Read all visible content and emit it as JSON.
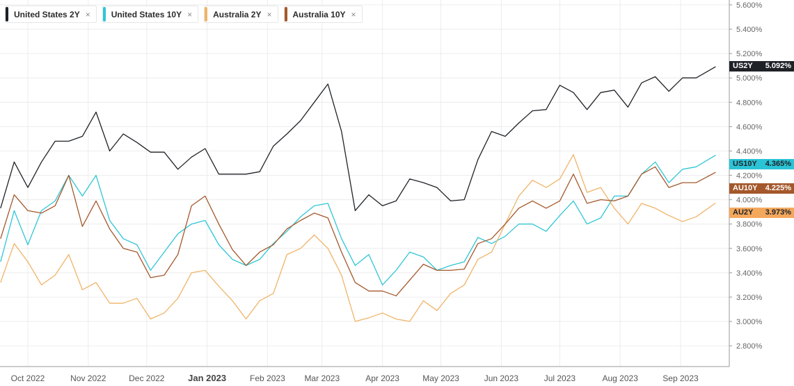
{
  "legend": [
    {
      "label": "United States 2Y",
      "color": "#1e2227",
      "close": "×"
    },
    {
      "label": "United States 10Y",
      "color": "#2fc6d6",
      "close": "×"
    },
    {
      "label": "Australia 2Y",
      "color": "#efb468",
      "close": "×"
    },
    {
      "label": "Australia 10Y",
      "color": "#a4582b",
      "close": "×"
    }
  ],
  "badges": [
    {
      "code": "US2Y",
      "value": "5.092%",
      "bg": "#1e2227",
      "fg": "#ffffff"
    },
    {
      "code": "US10Y",
      "value": "4.365%",
      "bg": "#2bc3d6",
      "fg": "#1e2227"
    },
    {
      "code": "AU10Y",
      "value": "4.225%",
      "bg": "#a4582b",
      "fg": "#ffffff"
    },
    {
      "code": "AU2Y",
      "value": "3.973%",
      "bg": "#f4a85c",
      "fg": "#1e2227"
    }
  ],
  "chart_data": {
    "type": "line",
    "title": "",
    "xlabel": "",
    "ylabel": "",
    "ylim": [
      2.6,
      5.6
    ],
    "yticks": [
      "5.600%",
      "5.400%",
      "5.200%",
      "5.000%",
      "4.800%",
      "4.600%",
      "4.400%",
      "4.200%",
      "4.000%",
      "3.800%",
      "3.600%",
      "3.400%",
      "3.200%",
      "3.000%",
      "2.800%"
    ],
    "ytick_values": [
      5.6,
      5.4,
      5.2,
      5.0,
      4.8,
      4.6,
      4.4,
      4.2,
      4.0,
      3.8,
      3.6,
      3.4,
      3.2,
      3.0,
      2.8
    ],
    "xticks": [
      {
        "label": "Oct 2022",
        "date": "2022-10-01"
      },
      {
        "label": "Nov 2022",
        "date": "2022-11-01"
      },
      {
        "label": "Dec 2022",
        "date": "2022-12-01"
      },
      {
        "label": "Jan 2023",
        "date": "2023-01-01",
        "year": true
      },
      {
        "label": "Feb 2023",
        "date": "2023-02-01"
      },
      {
        "label": "Mar 2023",
        "date": "2023-03-01"
      },
      {
        "label": "Apr 2023",
        "date": "2023-04-01"
      },
      {
        "label": "May 2023",
        "date": "2023-05-01"
      },
      {
        "label": "Jun 2023",
        "date": "2023-06-01"
      },
      {
        "label": "Jul 2023",
        "date": "2023-07-01"
      },
      {
        "label": "Aug 2023",
        "date": "2023-08-01"
      },
      {
        "label": "Sep 2023",
        "date": "2023-09-01"
      }
    ],
    "grid": true,
    "legend_position": "top-left",
    "x": [
      "2022-09-17",
      "2022-09-24",
      "2022-10-01",
      "2022-10-08",
      "2022-10-15",
      "2022-10-22",
      "2022-10-29",
      "2022-11-05",
      "2022-11-12",
      "2022-11-19",
      "2022-11-26",
      "2022-12-03",
      "2022-12-10",
      "2022-12-17",
      "2022-12-24",
      "2022-12-31",
      "2023-01-07",
      "2023-01-14",
      "2023-01-21",
      "2023-01-28",
      "2023-02-04",
      "2023-02-11",
      "2023-02-18",
      "2023-02-25",
      "2023-03-04",
      "2023-03-11",
      "2023-03-18",
      "2023-03-25",
      "2023-04-01",
      "2023-04-08",
      "2023-04-15",
      "2023-04-22",
      "2023-04-29",
      "2023-05-06",
      "2023-05-13",
      "2023-05-20",
      "2023-05-27",
      "2023-06-03",
      "2023-06-10",
      "2023-06-17",
      "2023-06-24",
      "2023-07-01",
      "2023-07-08",
      "2023-07-15",
      "2023-07-22",
      "2023-07-29",
      "2023-08-05",
      "2023-08-12",
      "2023-08-19",
      "2023-08-26",
      "2023-09-02",
      "2023-09-09",
      "2023-09-19"
    ],
    "series": [
      {
        "name": "United States 2Y",
        "color": "#1e2227",
        "values": [
          3.93,
          4.31,
          4.1,
          4.31,
          4.48,
          4.48,
          4.52,
          4.72,
          4.4,
          4.54,
          4.47,
          4.39,
          4.39,
          4.25,
          4.35,
          4.42,
          4.21,
          4.21,
          4.21,
          4.23,
          4.44,
          4.54,
          4.65,
          4.8,
          4.95,
          4.56,
          3.91,
          4.04,
          3.95,
          3.99,
          4.17,
          4.14,
          4.1,
          3.99,
          4.0,
          4.33,
          4.56,
          4.52,
          4.63,
          4.73,
          4.74,
          4.94,
          4.88,
          4.74,
          4.88,
          4.9,
          4.76,
          4.96,
          5.01,
          4.89,
          5.0,
          5.0,
          5.092
        ]
      },
      {
        "name": "United States 10Y",
        "color": "#2fc6d6",
        "values": [
          3.49,
          3.91,
          3.63,
          3.91,
          3.99,
          4.2,
          4.03,
          4.2,
          3.83,
          3.68,
          3.63,
          3.42,
          3.57,
          3.72,
          3.8,
          3.83,
          3.63,
          3.51,
          3.46,
          3.51,
          3.64,
          3.74,
          3.86,
          3.95,
          3.97,
          3.68,
          3.46,
          3.55,
          3.3,
          3.42,
          3.57,
          3.53,
          3.42,
          3.46,
          3.49,
          3.69,
          3.64,
          3.7,
          3.8,
          3.8,
          3.74,
          3.87,
          3.99,
          3.8,
          3.85,
          4.03,
          4.03,
          4.21,
          4.31,
          4.14,
          4.25,
          4.27,
          4.365
        ]
      },
      {
        "name": "Australia 2Y",
        "color": "#efb468",
        "values": [
          3.32,
          3.64,
          3.49,
          3.3,
          3.38,
          3.55,
          3.26,
          3.32,
          3.15,
          3.15,
          3.19,
          3.02,
          3.07,
          3.19,
          3.4,
          3.42,
          3.29,
          3.17,
          3.02,
          3.17,
          3.23,
          3.55,
          3.6,
          3.71,
          3.6,
          3.38,
          3.0,
          3.03,
          3.07,
          3.02,
          3.0,
          3.17,
          3.09,
          3.23,
          3.3,
          3.51,
          3.57,
          3.8,
          4.03,
          4.16,
          4.1,
          4.17,
          4.37,
          4.06,
          4.1,
          3.93,
          3.8,
          3.97,
          3.93,
          3.87,
          3.82,
          3.86,
          3.973
        ]
      },
      {
        "name": "Australia 10Y",
        "color": "#a4582b",
        "values": [
          3.68,
          4.04,
          3.91,
          3.89,
          3.95,
          4.2,
          3.78,
          3.99,
          3.76,
          3.6,
          3.57,
          3.36,
          3.38,
          3.55,
          3.95,
          4.03,
          3.8,
          3.59,
          3.46,
          3.57,
          3.63,
          3.76,
          3.83,
          3.89,
          3.85,
          3.57,
          3.32,
          3.25,
          3.25,
          3.21,
          3.34,
          3.47,
          3.42,
          3.42,
          3.43,
          3.64,
          3.68,
          3.8,
          3.93,
          3.99,
          3.93,
          3.99,
          4.21,
          3.97,
          4.0,
          3.99,
          4.03,
          4.21,
          4.27,
          4.1,
          4.14,
          4.14,
          4.225
        ]
      }
    ]
  }
}
